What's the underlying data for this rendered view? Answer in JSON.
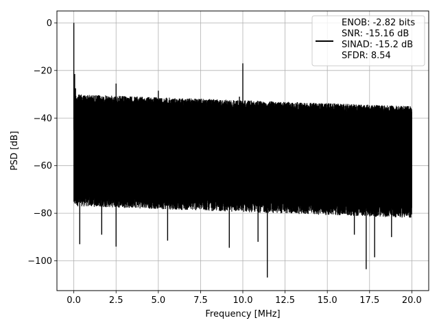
{
  "chart_data": {
    "type": "line",
    "title": "",
    "xlabel": "Frequency [MHz]",
    "ylabel": "PSD [dB]",
    "xlim": [
      -1.0,
      21.0
    ],
    "ylim": [
      -112.5,
      5.0
    ],
    "xticks": [
      0.0,
      2.5,
      5.0,
      7.5,
      10.0,
      12.5,
      15.0,
      17.5,
      20.0
    ],
    "xtick_labels": [
      "0.0",
      "2.5",
      "5.0",
      "7.5",
      "10.0",
      "12.5",
      "15.0",
      "17.5",
      "20.0"
    ],
    "yticks": [
      0,
      -20,
      -40,
      -60,
      -80,
      -100
    ],
    "ytick_labels": [
      "0",
      "−20",
      "−40",
      "−60",
      "−80",
      "−100"
    ],
    "grid": true,
    "legend_position": "top-right",
    "legend": [
      "ENOB: -2.82 bits",
      "SNR: -15.16 dB",
      "SINAD: -15.2 dB",
      "SFDR: 8.54"
    ],
    "line_color": "#000000",
    "noise": {
      "x_range": [
        0.0,
        20.0
      ],
      "floor_top": [
        -30,
        -35
      ],
      "floor_bottom": [
        -75,
        -80
      ]
    },
    "spikes": [
      {
        "x": 0.0,
        "y": 0.0
      },
      {
        "x": 0.05,
        "y": -21.5
      },
      {
        "x": 0.1,
        "y": -27.5
      },
      {
        "x": 0.15,
        "y": -75.5
      },
      {
        "x": 0.35,
        "y": -93.0
      },
      {
        "x": 1.65,
        "y": -89.0
      },
      {
        "x": 2.5,
        "y": -25.5
      },
      {
        "x": 2.5,
        "y": -94.0
      },
      {
        "x": 5.0,
        "y": -28.5
      },
      {
        "x": 5.55,
        "y": -91.5
      },
      {
        "x": 9.2,
        "y": -94.5
      },
      {
        "x": 9.8,
        "y": -31.0
      },
      {
        "x": 10.0,
        "y": -17.0
      },
      {
        "x": 10.9,
        "y": -92.0
      },
      {
        "x": 11.45,
        "y": -107.0
      },
      {
        "x": 16.6,
        "y": -89.0
      },
      {
        "x": 17.3,
        "y": -103.5
      },
      {
        "x": 17.8,
        "y": -98.5
      },
      {
        "x": 18.8,
        "y": -90.0
      }
    ]
  }
}
